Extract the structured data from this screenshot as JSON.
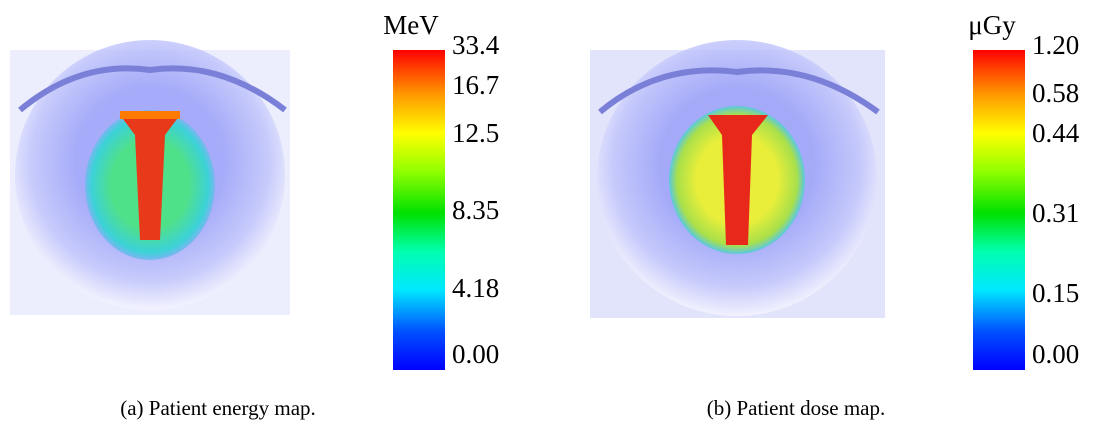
{
  "panels": [
    {
      "unit": "MeV",
      "ticks": [
        "33.4",
        "16.7",
        "12.5",
        "8.35",
        "4.18",
        "0.00"
      ],
      "caption": "(a) Patient energy map."
    },
    {
      "unit": "μGy",
      "ticks": [
        "1.20",
        "0.58",
        "0.44",
        "0.31",
        "0.15",
        "0.00"
      ],
      "caption": "(b) Patient dose map."
    }
  ]
}
